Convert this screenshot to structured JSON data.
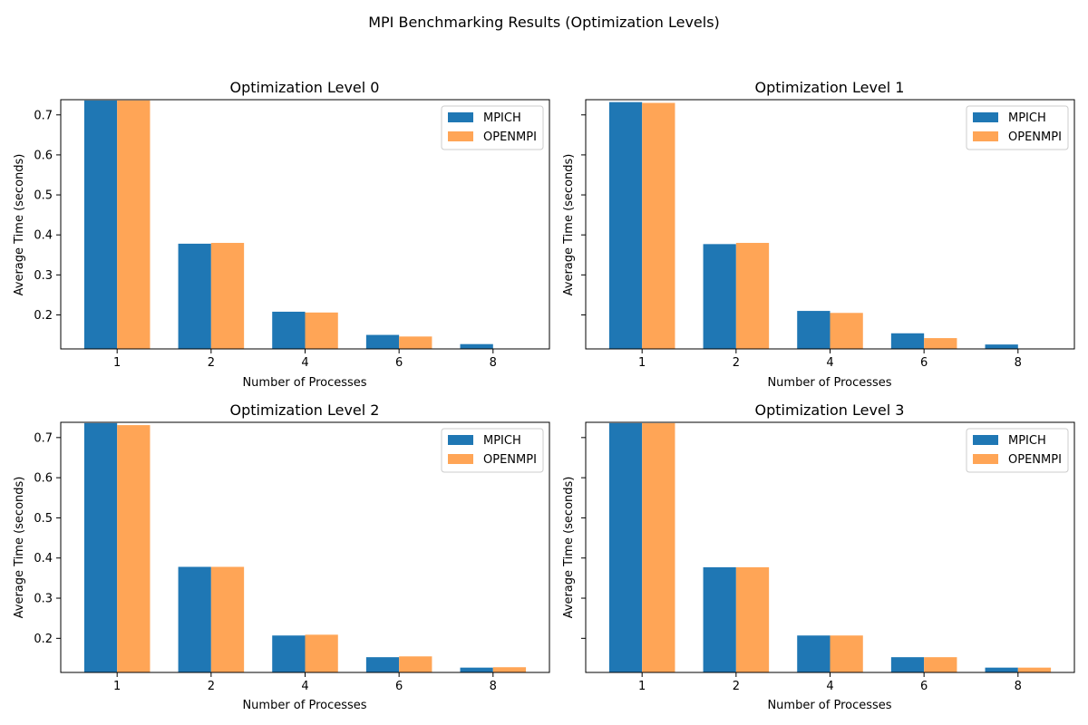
{
  "figure": {
    "suptitle": "MPI Benchmarking Results (Optimization Levels)"
  },
  "colors": {
    "mpich": "#1f77b4",
    "openmpi": "#ffa556"
  },
  "chart_data": [
    {
      "type": "bar",
      "title": "Optimization Level 0",
      "xlabel": "Number of Processes",
      "ylabel": "Average Time (seconds)",
      "categories": [
        "1",
        "2",
        "4",
        "6",
        "8"
      ],
      "ylim": [
        0.115,
        0.738
      ],
      "yticks": [
        "0.2",
        "0.3",
        "0.4",
        "0.5",
        "0.6",
        "0.7"
      ],
      "legend": "top-right",
      "series": [
        {
          "name": "MPICH",
          "values": [
            0.736,
            0.378,
            0.208,
            0.15,
            0.127
          ]
        },
        {
          "name": "OPENMPI",
          "values": [
            0.736,
            0.38,
            0.206,
            0.146,
            0.114
          ]
        }
      ]
    },
    {
      "type": "bar",
      "title": "Optimization Level 1",
      "xlabel": "Number of Processes",
      "ylabel": "Average Time (seconds)",
      "categories": [
        "1",
        "2",
        "4",
        "6",
        "8"
      ],
      "ylim": [
        0.115,
        0.738
      ],
      "yticks": [
        "",
        "",
        "",
        "",
        "",
        ""
      ],
      "legend": "top-right",
      "series": [
        {
          "name": "MPICH",
          "values": [
            0.732,
            0.377,
            0.21,
            0.154,
            0.126
          ]
        },
        {
          "name": "OPENMPI",
          "values": [
            0.73,
            0.38,
            0.205,
            0.142,
            0.114
          ]
        }
      ]
    },
    {
      "type": "bar",
      "title": "Optimization Level 2",
      "xlabel": "Number of Processes",
      "ylabel": "Average Time (seconds)",
      "categories": [
        "1",
        "2",
        "4",
        "6",
        "8"
      ],
      "ylim": [
        0.115,
        0.738
      ],
      "yticks": [
        "0.2",
        "0.3",
        "0.4",
        "0.5",
        "0.6",
        "0.7"
      ],
      "legend": "top-right",
      "series": [
        {
          "name": "MPICH",
          "values": [
            0.736,
            0.378,
            0.207,
            0.153,
            0.127
          ]
        },
        {
          "name": "OPENMPI",
          "values": [
            0.731,
            0.378,
            0.209,
            0.155,
            0.128
          ]
        }
      ]
    },
    {
      "type": "bar",
      "title": "Optimization Level 3",
      "xlabel": "Number of Processes",
      "ylabel": "Average Time (seconds)",
      "categories": [
        "1",
        "2",
        "4",
        "6",
        "8"
      ],
      "ylim": [
        0.115,
        0.738
      ],
      "yticks": [
        "",
        "",
        "",
        "",
        "",
        ""
      ],
      "legend": "top-right",
      "series": [
        {
          "name": "MPICH",
          "values": [
            0.736,
            0.377,
            0.207,
            0.153,
            0.127
          ]
        },
        {
          "name": "OPENMPI",
          "values": [
            0.736,
            0.377,
            0.207,
            0.153,
            0.127
          ]
        }
      ]
    }
  ]
}
